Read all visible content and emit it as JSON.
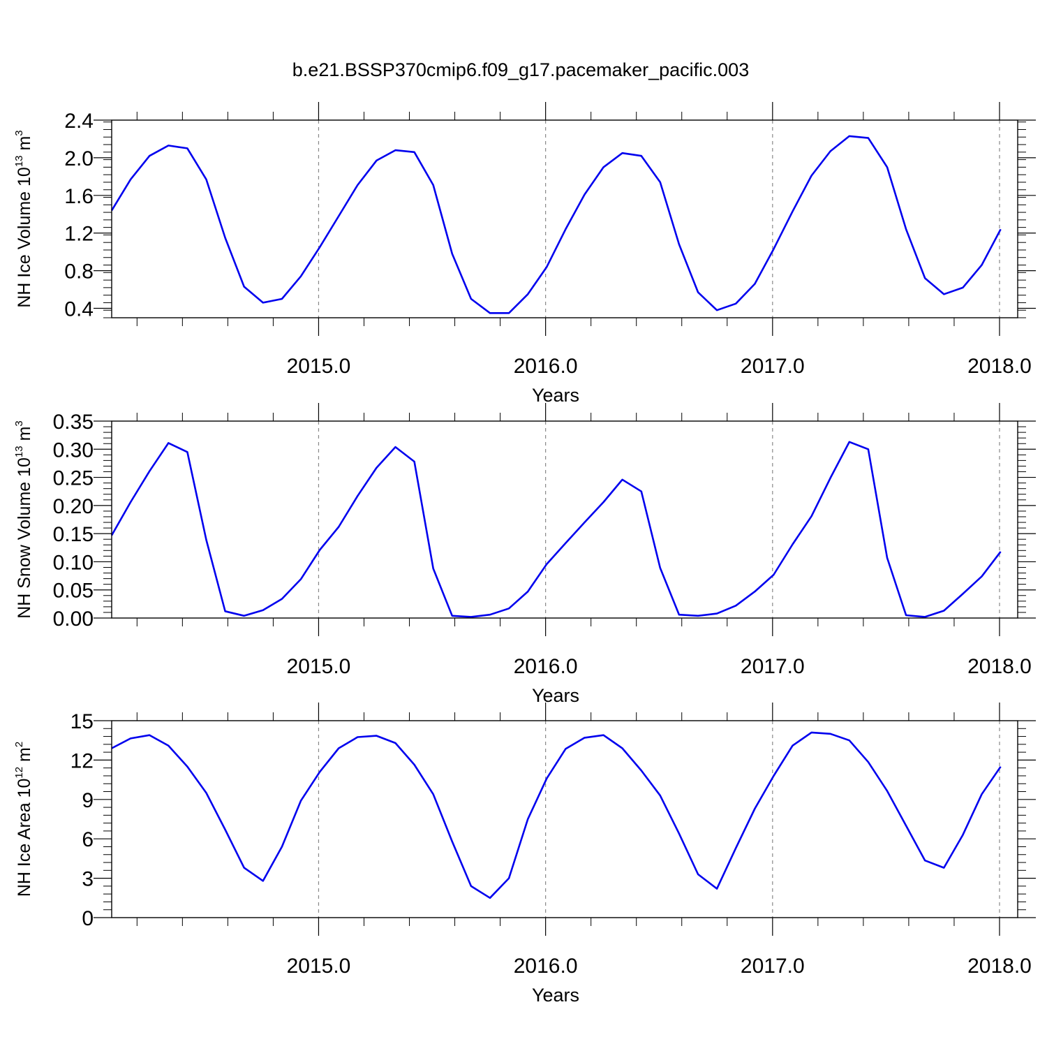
{
  "figure": {
    "title": "b.e21.BSSP370cmip6.f09_g17.pacemaker_pacific.003"
  },
  "chart_data": [
    {
      "type": "line",
      "title": "",
      "xlabel": "Years",
      "ylabel": {
        "text": "NH Ice Volume 10",
        "sup": "13",
        "unit": " m",
        "unit_sup": "3"
      },
      "xlim": [
        2014.0883,
        2018.08
      ],
      "ylim": [
        0.3,
        2.4
      ],
      "xticks": [
        2015.0,
        2016.0,
        2017.0,
        2018.0
      ],
      "xtick_labels": [
        "2015.0",
        "2016.0",
        "2017.0",
        "2018.0"
      ],
      "yticks": [
        0.4,
        0.8,
        1.2,
        1.6,
        2.0,
        2.4
      ],
      "ytick_labels": [
        "0.4",
        "0.8",
        "1.2",
        "1.6",
        "2.0",
        "2.4"
      ],
      "grid": "vertical dashed at major x ticks",
      "color": "#0000ee",
      "series": [
        {
          "x": [
            2014.0883,
            2014.1717,
            2014.255,
            2014.3383,
            2014.4217,
            2014.505,
            2014.5883,
            2014.6717,
            2014.755,
            2014.8383,
            2014.9217,
            2015.005,
            2015.0883,
            2015.1717,
            2015.255,
            2015.3383,
            2015.4217,
            2015.505,
            2015.5883,
            2015.6717,
            2015.755,
            2015.8383,
            2015.9217,
            2016.005,
            2016.0883,
            2016.1717,
            2016.255,
            2016.3383,
            2016.4217,
            2016.505,
            2016.5883,
            2016.6717,
            2016.755,
            2016.8383,
            2016.9217,
            2017.005,
            2017.0883,
            2017.1717,
            2017.255,
            2017.3383,
            2017.4217,
            2017.505,
            2017.5883,
            2017.6717,
            2017.755,
            2017.8383,
            2017.9217,
            2018.005
          ],
          "y": [
            1.44,
            1.77,
            2.02,
            2.13,
            2.1,
            1.77,
            1.15,
            0.63,
            0.46,
            0.5,
            0.74,
            1.05,
            1.38,
            1.71,
            1.97,
            2.08,
            2.06,
            1.71,
            0.98,
            0.5,
            0.35,
            0.35,
            0.55,
            0.84,
            1.24,
            1.61,
            1.9,
            2.05,
            2.02,
            1.74,
            1.08,
            0.57,
            0.38,
            0.45,
            0.66,
            1.03,
            1.43,
            1.81,
            2.07,
            2.23,
            2.21,
            1.9,
            1.24,
            0.72,
            0.55,
            0.62,
            0.86,
            1.24
          ]
        }
      ]
    },
    {
      "type": "line",
      "title": "",
      "xlabel": "Years",
      "ylabel": {
        "text": "NH Snow Volume 10",
        "sup": "13",
        "unit": " m",
        "unit_sup": "3"
      },
      "xlim": [
        2014.0883,
        2018.08
      ],
      "ylim": [
        0.0,
        0.35
      ],
      "xticks": [
        2015.0,
        2016.0,
        2017.0,
        2018.0
      ],
      "xtick_labels": [
        "2015.0",
        "2016.0",
        "2017.0",
        "2018.0"
      ],
      "yticks": [
        0.0,
        0.05,
        0.1,
        0.15,
        0.2,
        0.25,
        0.3,
        0.35
      ],
      "ytick_labels": [
        "0.00",
        "0.05",
        "0.10",
        "0.15",
        "0.20",
        "0.25",
        "0.30",
        "0.35"
      ],
      "grid": "vertical dashed at major x ticks",
      "color": "#0000ee",
      "series": [
        {
          "x": [
            2014.0883,
            2014.1717,
            2014.255,
            2014.3383,
            2014.4217,
            2014.505,
            2014.5883,
            2014.6717,
            2014.755,
            2014.8383,
            2014.9217,
            2015.005,
            2015.0883,
            2015.1717,
            2015.255,
            2015.3383,
            2015.4217,
            2015.505,
            2015.5883,
            2015.6717,
            2015.755,
            2015.8383,
            2015.9217,
            2016.005,
            2016.0883,
            2016.1717,
            2016.255,
            2016.3383,
            2016.4217,
            2016.505,
            2016.5883,
            2016.6717,
            2016.755,
            2016.8383,
            2016.9217,
            2017.005,
            2017.0883,
            2017.1717,
            2017.255,
            2017.3383,
            2017.4217,
            2017.505,
            2017.5883,
            2017.6717,
            2017.755,
            2017.8383,
            2017.9217,
            2018.005
          ],
          "y": [
            0.147,
            0.206,
            0.261,
            0.311,
            0.295,
            0.139,
            0.012,
            0.004,
            0.014,
            0.034,
            0.069,
            0.121,
            0.162,
            0.217,
            0.267,
            0.304,
            0.278,
            0.088,
            0.004,
            0.002,
            0.006,
            0.017,
            0.047,
            0.096,
            0.133,
            0.17,
            0.206,
            0.246,
            0.225,
            0.089,
            0.006,
            0.004,
            0.008,
            0.022,
            0.047,
            0.077,
            0.131,
            0.181,
            0.249,
            0.313,
            0.3,
            0.107,
            0.005,
            0.002,
            0.013,
            0.043,
            0.074,
            0.118
          ]
        }
      ]
    },
    {
      "type": "line",
      "title": "",
      "xlabel": "Years",
      "ylabel": {
        "text": "NH Ice Area 10",
        "sup": "12",
        "unit": " m",
        "unit_sup": "2"
      },
      "xlim": [
        2014.0883,
        2018.08
      ],
      "ylim": [
        0,
        15
      ],
      "xticks": [
        2015.0,
        2016.0,
        2017.0,
        2018.0
      ],
      "xtick_labels": [
        "2015.0",
        "2016.0",
        "2017.0",
        "2018.0"
      ],
      "yticks": [
        0,
        3,
        6,
        9,
        12,
        15
      ],
      "ytick_labels": [
        "0",
        "3",
        "6",
        "9",
        "12",
        "15"
      ],
      "grid": "vertical dashed at major x ticks",
      "color": "#0000ee",
      "series": [
        {
          "x": [
            2014.0883,
            2014.1717,
            2014.255,
            2014.3383,
            2014.4217,
            2014.505,
            2014.5883,
            2014.6717,
            2014.755,
            2014.8383,
            2014.9217,
            2015.005,
            2015.0883,
            2015.1717,
            2015.255,
            2015.3383,
            2015.4217,
            2015.505,
            2015.5883,
            2015.6717,
            2015.755,
            2015.8383,
            2015.9217,
            2016.005,
            2016.0883,
            2016.1717,
            2016.255,
            2016.3383,
            2016.4217,
            2016.505,
            2016.5883,
            2016.6717,
            2016.755,
            2016.8383,
            2016.9217,
            2017.005,
            2017.0883,
            2017.1717,
            2017.255,
            2017.3383,
            2017.4217,
            2017.505,
            2017.5883,
            2017.6717,
            2017.755,
            2017.8383,
            2017.9217,
            2018.005
          ],
          "y": [
            12.9,
            13.65,
            13.9,
            13.1,
            11.5,
            9.5,
            6.7,
            3.8,
            2.8,
            5.4,
            8.9,
            11.1,
            12.9,
            13.75,
            13.85,
            13.3,
            11.65,
            9.4,
            5.8,
            2.4,
            1.5,
            3.0,
            7.5,
            10.6,
            12.85,
            13.7,
            13.9,
            12.9,
            11.2,
            9.3,
            6.4,
            3.3,
            2.2,
            5.3,
            8.3,
            10.8,
            13.1,
            14.1,
            14.0,
            13.5,
            11.85,
            9.65,
            7.0,
            4.35,
            3.8,
            6.3,
            9.4,
            11.5
          ]
        }
      ]
    }
  ]
}
